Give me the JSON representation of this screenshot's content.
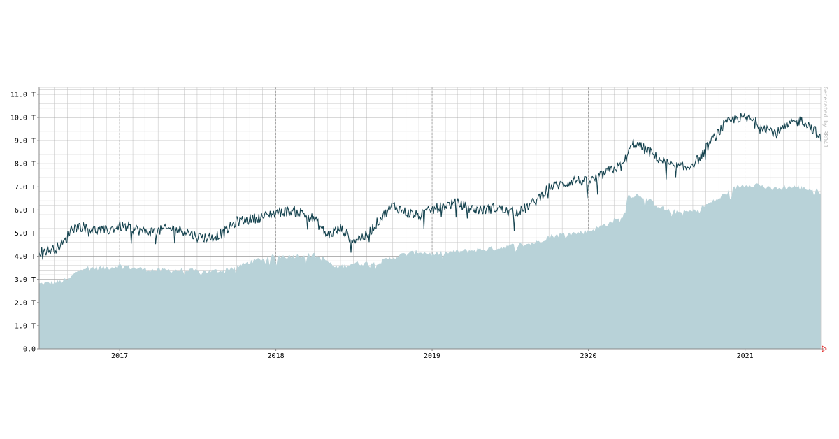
{
  "chart_data": {
    "type": "area",
    "title": "",
    "xlabel": "",
    "ylabel": "",
    "watermark": "Generated by RRD4J",
    "x_range": [
      "2016-06-27",
      "2021-06-27"
    ],
    "ylim": [
      0,
      11.3
    ],
    "y_ticks": [
      {
        "value": 0,
        "label": "0.0"
      },
      {
        "value": 1,
        "label": "1.0 T"
      },
      {
        "value": 2,
        "label": "2.0 T"
      },
      {
        "value": 3,
        "label": "3.0 T"
      },
      {
        "value": 4,
        "label": "4.0 T"
      },
      {
        "value": 5,
        "label": "5.0 T"
      },
      {
        "value": 6,
        "label": "6.0 T"
      },
      {
        "value": 7,
        "label": "7.0 T"
      },
      {
        "value": 8,
        "label": "8.0 T"
      },
      {
        "value": 9,
        "label": "9.0 T"
      },
      {
        "value": 10,
        "label": "10.0 T"
      },
      {
        "value": 11,
        "label": "11.0 T"
      }
    ],
    "x_ticks": [
      {
        "date": "2017-01-01",
        "label": "2017"
      },
      {
        "date": "2018-01-01",
        "label": "2018"
      },
      {
        "date": "2019-01-01",
        "label": "2019"
      },
      {
        "date": "2020-01-01",
        "label": "2020"
      },
      {
        "date": "2021-01-01",
        "label": "2021"
      }
    ],
    "grid": true,
    "colors": {
      "area": "#b8d2d8",
      "line": "#14424e",
      "grid_minor": "#c8c8c8",
      "grid_major": "#9a9a9a",
      "axis": "#888888",
      "arrow": "#e03030",
      "watermark": "#b8b8b8"
    },
    "series": [
      {
        "style": "area",
        "x": [
          "2016-06-27",
          "2016-08-15",
          "2016-09-05",
          "2016-10-01",
          "2016-11-01",
          "2016-12-01",
          "2017-01-01",
          "2017-02-01",
          "2017-03-01",
          "2017-04-01",
          "2017-05-01",
          "2017-06-01",
          "2017-07-01",
          "2017-08-01",
          "2017-09-01",
          "2017-10-01",
          "2017-11-01",
          "2017-12-01",
          "2018-01-01",
          "2018-02-01",
          "2018-03-01",
          "2018-04-01",
          "2018-05-01",
          "2018-05-20",
          "2018-06-10",
          "2018-07-01",
          "2018-08-01",
          "2018-09-01",
          "2018-10-01",
          "2018-11-01",
          "2018-12-01",
          "2019-01-01",
          "2019-02-01",
          "2019-03-01",
          "2019-04-01",
          "2019-05-01",
          "2019-06-01",
          "2019-07-01",
          "2019-08-01",
          "2019-09-01",
          "2019-10-01",
          "2019-11-01",
          "2019-12-01",
          "2020-01-01",
          "2020-02-01",
          "2020-03-01",
          "2020-03-20",
          "2020-04-01",
          "2020-05-01",
          "2020-06-01",
          "2020-07-01",
          "2020-08-01",
          "2020-09-01",
          "2020-10-01",
          "2020-11-01",
          "2020-12-01",
          "2021-01-01",
          "2021-02-01",
          "2021-03-01",
          "2021-04-01",
          "2021-05-01",
          "2021-06-01",
          "2021-06-27"
        ],
        "values": [
          2.8,
          2.9,
          3.0,
          3.5,
          3.5,
          3.5,
          3.6,
          3.5,
          3.45,
          3.4,
          3.4,
          3.4,
          3.35,
          3.35,
          3.4,
          3.55,
          3.75,
          3.9,
          4.0,
          4.0,
          4.05,
          4.05,
          3.8,
          3.5,
          3.6,
          3.7,
          3.7,
          3.75,
          3.95,
          4.1,
          4.2,
          4.1,
          4.15,
          4.2,
          4.25,
          4.3,
          4.35,
          4.45,
          4.5,
          4.6,
          4.85,
          4.95,
          5.0,
          5.1,
          5.3,
          5.55,
          5.6,
          6.6,
          6.65,
          6.3,
          6.0,
          5.9,
          5.95,
          6.2,
          6.5,
          6.9,
          7.1,
          7.1,
          6.9,
          7.0,
          7.0,
          6.9,
          6.8
        ]
      },
      {
        "style": "line",
        "x": [
          "2016-06-27",
          "2016-08-01",
          "2016-08-25",
          "2016-09-10",
          "2016-10-01",
          "2016-11-01",
          "2016-12-01",
          "2017-01-01",
          "2017-02-01",
          "2017-03-01",
          "2017-04-01",
          "2017-05-01",
          "2017-06-01",
          "2017-07-01",
          "2017-08-01",
          "2017-09-01",
          "2017-10-01",
          "2017-11-01",
          "2017-12-01",
          "2018-01-01",
          "2018-02-01",
          "2018-03-01",
          "2018-04-01",
          "2018-05-01",
          "2018-06-01",
          "2018-07-01",
          "2018-08-01",
          "2018-09-01",
          "2018-10-01",
          "2018-11-01",
          "2018-12-01",
          "2019-01-01",
          "2019-02-01",
          "2019-03-01",
          "2019-04-01",
          "2019-05-01",
          "2019-06-01",
          "2019-07-01",
          "2019-08-01",
          "2019-09-01",
          "2019-10-01",
          "2019-11-01",
          "2019-12-01",
          "2020-01-01",
          "2020-02-01",
          "2020-03-01",
          "2020-03-20",
          "2020-04-15",
          "2020-05-15",
          "2020-06-15",
          "2020-07-15",
          "2020-08-15",
          "2020-09-15",
          "2020-10-15",
          "2020-11-15",
          "2020-12-15",
          "2021-01-15",
          "2021-02-15",
          "2021-03-15",
          "2021-04-15",
          "2021-05-15",
          "2021-06-15",
          "2021-06-27"
        ],
        "values": [
          4.2,
          4.3,
          4.6,
          5.2,
          5.3,
          5.15,
          5.1,
          5.3,
          5.2,
          5.05,
          5.1,
          5.2,
          5.1,
          4.85,
          4.8,
          5.0,
          5.5,
          5.6,
          5.7,
          5.9,
          5.95,
          5.9,
          5.6,
          4.9,
          5.2,
          4.7,
          4.9,
          5.6,
          6.2,
          5.9,
          5.75,
          6.0,
          6.2,
          6.3,
          6.05,
          6.0,
          6.1,
          5.9,
          6.0,
          6.4,
          7.0,
          7.1,
          7.3,
          7.2,
          7.5,
          7.8,
          7.9,
          8.9,
          8.6,
          8.2,
          7.9,
          7.8,
          8.2,
          9.0,
          9.7,
          10.0,
          9.9,
          9.6,
          9.3,
          9.7,
          9.9,
          9.4,
          9.0
        ]
      }
    ]
  }
}
